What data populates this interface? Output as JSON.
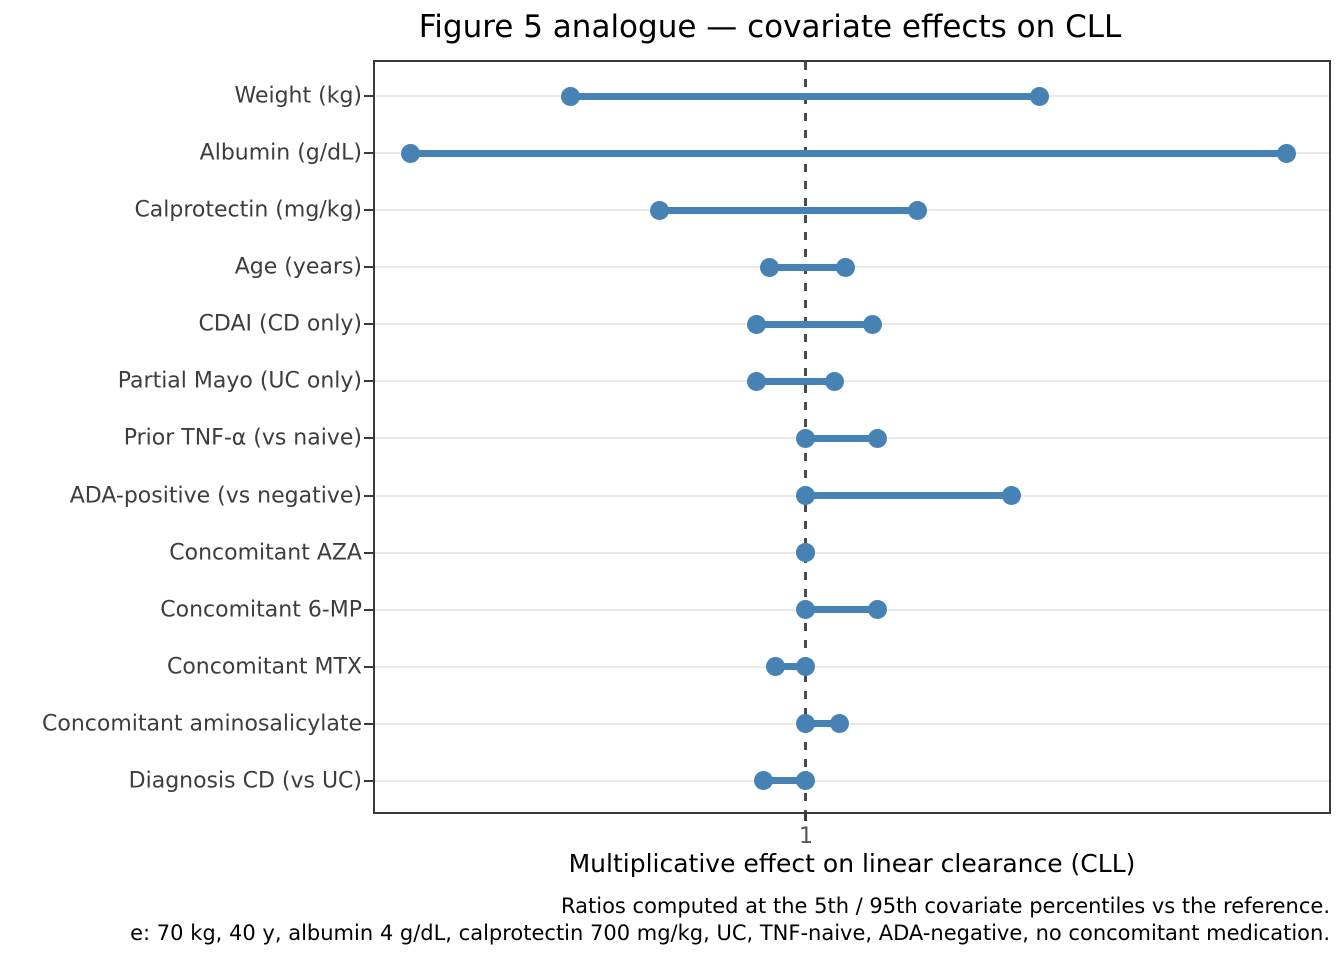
{
  "chart_data": {
    "type": "dumbbell",
    "title": "Figure 5 analogue — covariate effects on CLL",
    "xlabel": "Multiplicative effect on linear clearance (CLL)",
    "x_scale": "log",
    "xlim": [
      0.48,
      2.44
    ],
    "x_ticks": [
      {
        "value": 1,
        "label": "1"
      }
    ],
    "reference_line": 1.0,
    "grid": "horizontal",
    "rows": [
      {
        "label": "Weight (kg)",
        "low": 0.67,
        "high": 1.49
      },
      {
        "label": "Albumin (g/dL)",
        "low": 0.51,
        "high": 2.27
      },
      {
        "label": "Calprotectin (mg/kg)",
        "low": 0.78,
        "high": 1.21
      },
      {
        "label": "Age (years)",
        "low": 0.94,
        "high": 1.07
      },
      {
        "label": "CDAI (CD only)",
        "low": 0.92,
        "high": 1.12
      },
      {
        "label": "Partial Mayo (UC only)",
        "low": 0.92,
        "high": 1.05
      },
      {
        "label": "Prior TNF-α (vs naive)",
        "low": 1.0,
        "high": 1.13
      },
      {
        "label": "ADA-positive (vs negative)",
        "low": 1.0,
        "high": 1.42
      },
      {
        "label": "Concomitant AZA",
        "low": 1.0,
        "high": 1.0
      },
      {
        "label": "Concomitant 6-MP",
        "low": 1.0,
        "high": 1.13
      },
      {
        "label": "Concomitant MTX",
        "low": 0.95,
        "high": 1.0
      },
      {
        "label": "Concomitant aminosalicylate",
        "low": 1.0,
        "high": 1.06
      },
      {
        "label": "Diagnosis CD (vs UC)",
        "low": 0.93,
        "high": 1.0
      }
    ],
    "footnotes": [
      "Ratios computed at the 5th / 95th covariate percentiles vs the reference.",
      "e: 70 kg, 40 y, albumin 4 g/dL, calprotectin 700 mg/kg, UC, TNF-naive, ADA-negative, no concomitant medication."
    ],
    "colors": {
      "marker": "#4682b4",
      "reference_line": "#4a4a4a",
      "grid": "#e9e9e9",
      "frame": "#3a3a3a",
      "tick_label": "#555555",
      "category_label": "#3d3d3d",
      "text": "#000000"
    }
  }
}
